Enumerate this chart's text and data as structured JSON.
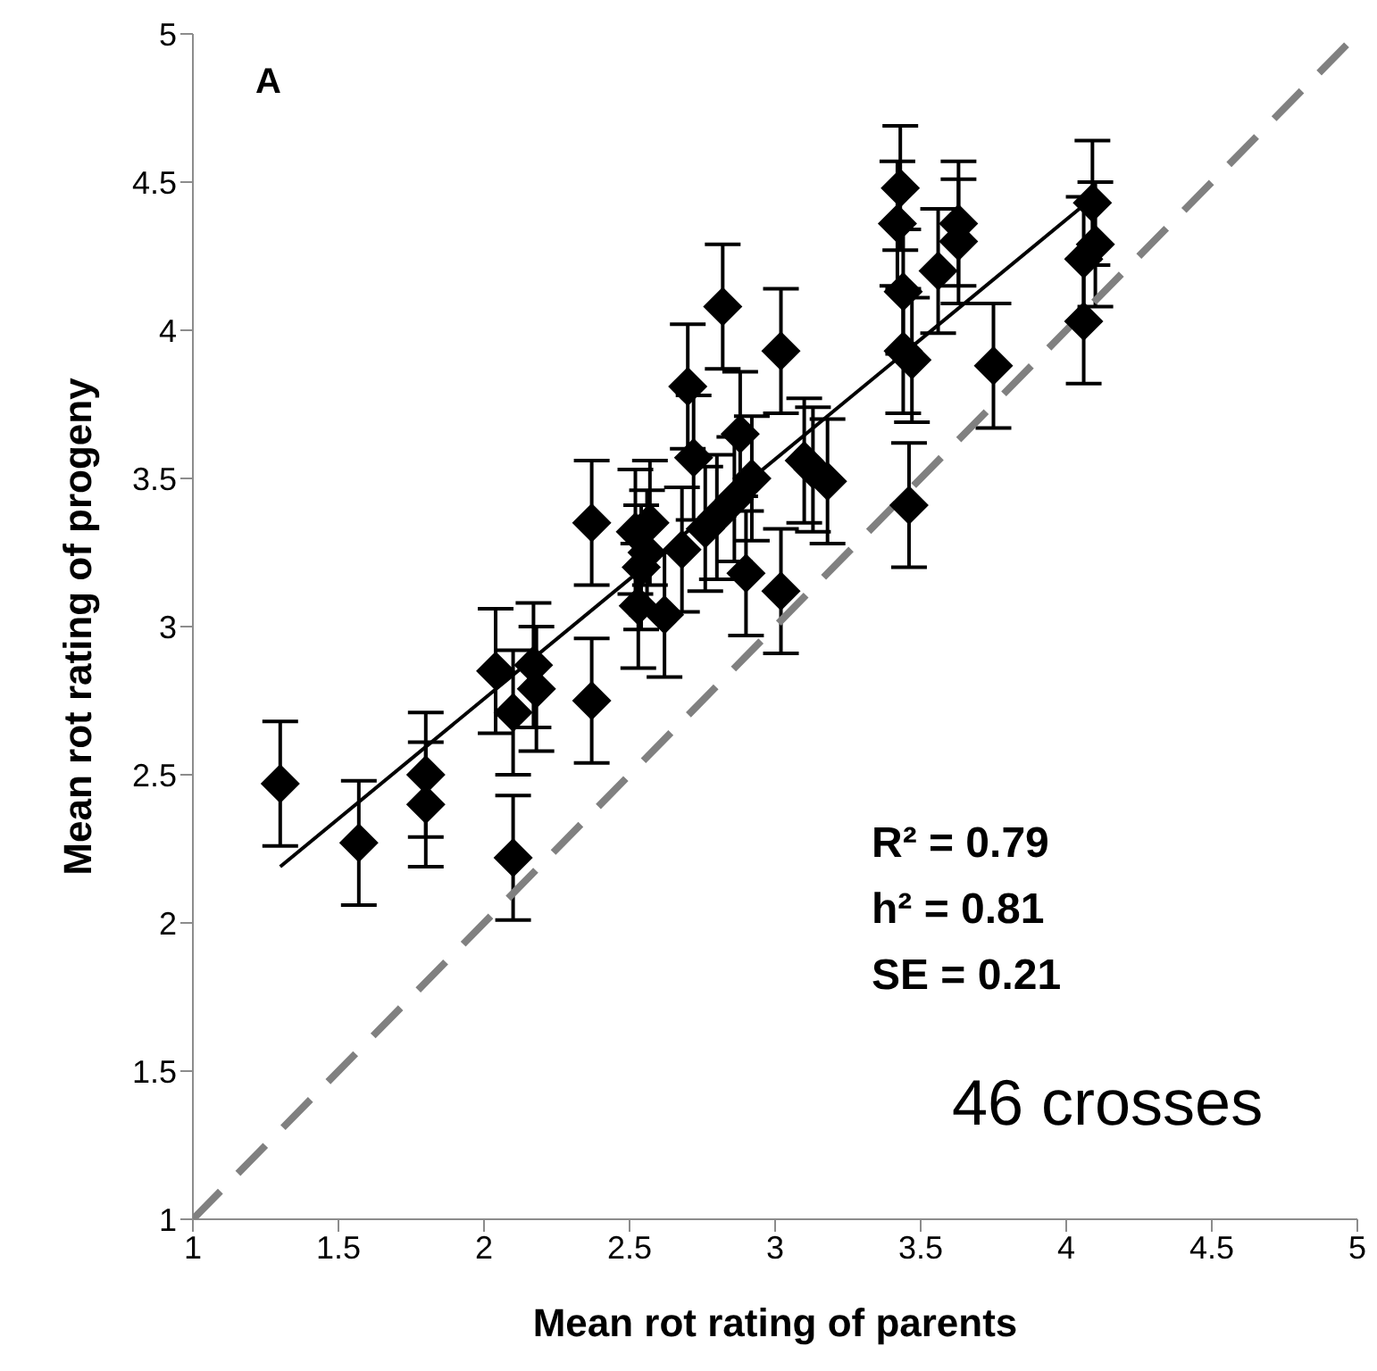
{
  "chart_data": {
    "type": "scatter",
    "xlabel": "Mean rot rating of parents",
    "ylabel": "Mean rot rating of progeny",
    "xlim": [
      1,
      5
    ],
    "xticks": [
      1,
      1.5,
      2,
      2.5,
      3,
      3.5,
      4,
      4.5,
      5
    ],
    "ylim": [
      1,
      5
    ],
    "yticks": [
      1,
      1.5,
      2,
      2.5,
      3,
      3.5,
      4,
      4.5,
      5
    ],
    "grid": false,
    "legend": false,
    "marker": "diamond",
    "annotations": [
      "A",
      "R² = 0.79",
      "h² = 0.81",
      "SE = 0.21",
      "46 crosses"
    ],
    "series": [
      {
        "color": "#000000",
        "x": [
          1.3,
          1.57,
          1.8,
          1.8,
          2.04,
          2.1,
          2.1,
          2.17,
          2.18,
          2.37,
          2.37,
          2.52,
          2.53,
          2.54,
          2.56,
          2.57,
          2.62,
          2.68,
          2.7,
          2.72,
          2.76,
          2.8,
          2.82,
          2.86,
          2.88,
          2.9,
          2.92,
          3.02,
          3.02,
          3.1,
          3.13,
          3.18,
          3.42,
          3.43,
          3.44,
          3.44,
          3.47,
          3.46,
          3.56,
          3.63,
          3.63,
          3.75,
          4.06,
          4.06,
          4.09,
          4.1
        ],
        "values": [
          2.47,
          2.27,
          2.5,
          2.4,
          2.85,
          2.71,
          2.22,
          2.87,
          2.79,
          2.75,
          3.35,
          3.32,
          3.07,
          3.2,
          3.25,
          3.35,
          3.04,
          3.26,
          3.81,
          3.57,
          3.33,
          3.37,
          4.08,
          3.43,
          3.65,
          3.18,
          3.5,
          3.93,
          3.12,
          3.56,
          3.53,
          3.49,
          4.36,
          4.48,
          4.13,
          3.93,
          3.9,
          3.41,
          4.2,
          4.36,
          4.3,
          3.88,
          4.24,
          4.03,
          4.43,
          4.29
        ],
        "errors": [
          0.21,
          0.21,
          0.21,
          0.21,
          0.21,
          0.21,
          0.21,
          0.21,
          0.21,
          0.21,
          0.21,
          0.21,
          0.21,
          0.21,
          0.21,
          0.21,
          0.21,
          0.21,
          0.21,
          0.21,
          0.21,
          0.21,
          0.21,
          0.21,
          0.21,
          0.21,
          0.21,
          0.21,
          0.21,
          0.21,
          0.21,
          0.21,
          0.21,
          0.21,
          0.21,
          0.21,
          0.21,
          0.21,
          0.21,
          0.21,
          0.21,
          0.21,
          0.21,
          0.21,
          0.21,
          0.21
        ]
      },
      {
        "type": "line",
        "color": "#000000",
        "marker": "none",
        "line_style": "solid",
        "x": [
          1.3,
          4.07
        ],
        "values": [
          2.19,
          4.43
        ]
      },
      {
        "type": "line",
        "color": "#808080",
        "marker": "none",
        "line_style": "dashed",
        "x": [
          1,
          5
        ],
        "values": [
          1,
          5
        ]
      }
    ]
  }
}
